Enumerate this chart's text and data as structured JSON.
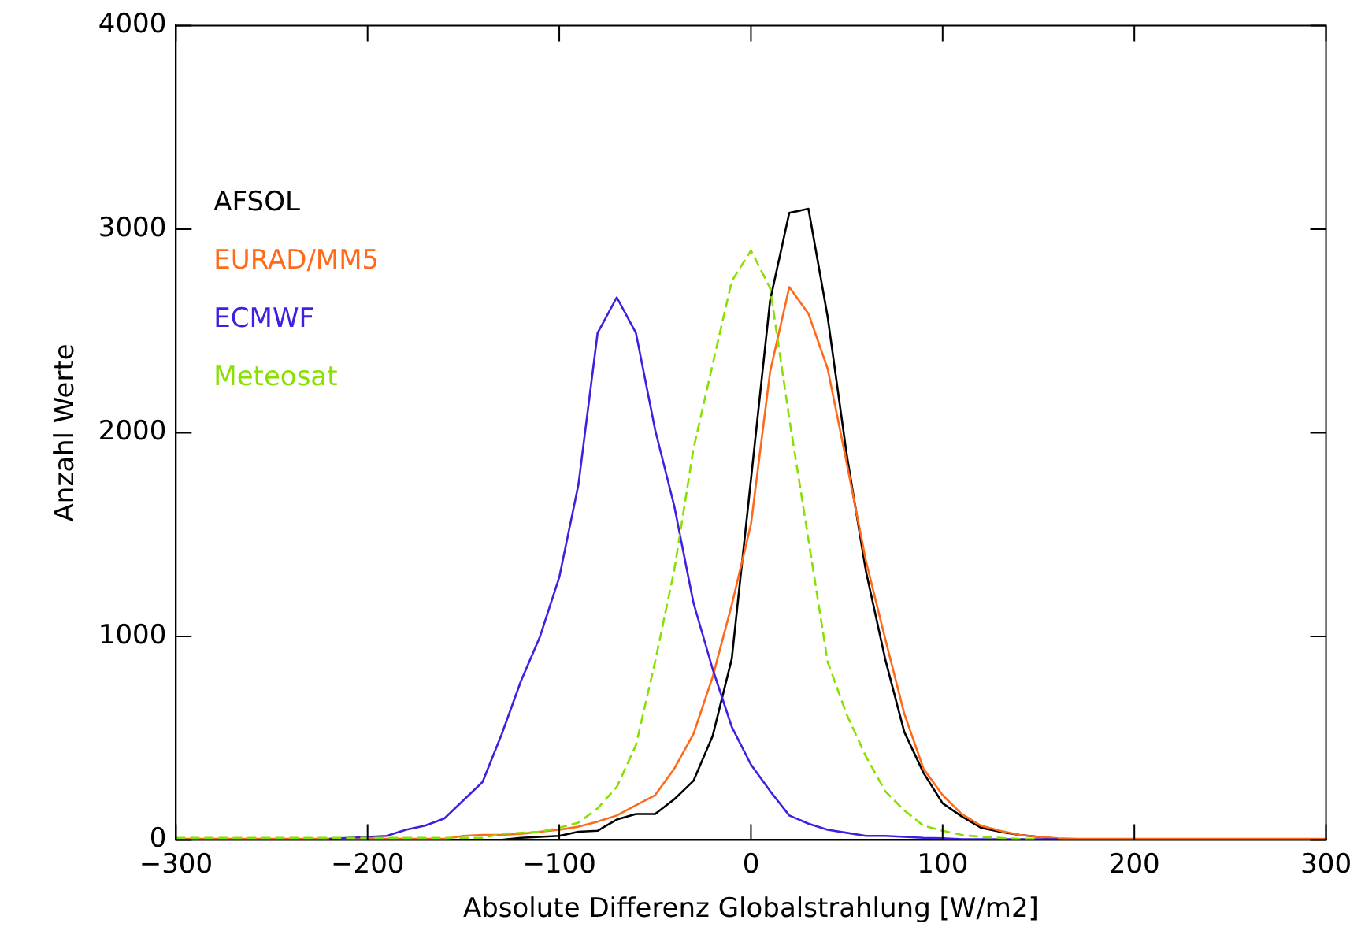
{
  "chart_data": {
    "type": "line",
    "xlabel": "Absolute Differenz Globalstrahlung [W/m2]",
    "ylabel": "Anzahl Werte",
    "x": [
      -300,
      -290,
      -280,
      -270,
      -260,
      -250,
      -240,
      -230,
      -220,
      -210,
      -200,
      -190,
      -180,
      -170,
      -160,
      -150,
      -140,
      -130,
      -120,
      -110,
      -100,
      -90,
      -80,
      -70,
      -60,
      -50,
      -40,
      -30,
      -20,
      -10,
      0,
      10,
      20,
      30,
      40,
      50,
      60,
      70,
      80,
      90,
      100,
      110,
      120,
      130,
      140,
      150,
      160,
      170,
      180,
      190,
      200,
      210,
      220,
      230,
      240,
      250,
      260,
      270,
      280,
      290,
      300
    ],
    "series": [
      {
        "name": "AFSOL",
        "color": "#000000",
        "values": [
          0,
          0,
          0,
          0,
          0,
          0,
          0,
          0,
          0,
          0,
          0,
          0,
          0,
          0,
          0,
          0,
          0,
          0,
          10,
          15,
          20,
          40,
          45,
          100,
          127,
          127,
          200,
          290,
          510,
          890,
          1770,
          2650,
          3080,
          3100,
          2570,
          1890,
          1320,
          890,
          530,
          330,
          180,
          115,
          60,
          40,
          25,
          15,
          5,
          0,
          0,
          0,
          0,
          0,
          0,
          0,
          0,
          0,
          0,
          0,
          0,
          0,
          0
        ]
      },
      {
        "name": "EURAD/MM5",
        "color": "#ff6a1a",
        "values": [
          5,
          5,
          5,
          5,
          5,
          5,
          5,
          5,
          5,
          5,
          5,
          5,
          5,
          5,
          5,
          20,
          25,
          25,
          30,
          40,
          50,
          65,
          90,
          120,
          170,
          220,
          350,
          520,
          800,
          1155,
          1550,
          2300,
          2715,
          2585,
          2315,
          1850,
          1370,
          990,
          620,
          350,
          220,
          127,
          70,
          45,
          25,
          15,
          8,
          5,
          5,
          5,
          5,
          5,
          5,
          5,
          5,
          5,
          5,
          5,
          5,
          5,
          5
        ]
      },
      {
        "name": "ECMWF",
        "color": "#4020e0",
        "values": [
          null,
          null,
          null,
          null,
          null,
          null,
          null,
          null,
          5,
          10,
          15,
          20,
          50,
          70,
          105,
          195,
          285,
          520,
          780,
          1000,
          1290,
          1745,
          2490,
          2665,
          2490,
          2015,
          1640,
          1165,
          840,
          555,
          370,
          240,
          120,
          80,
          50,
          35,
          20,
          20,
          15,
          10,
          8,
          3,
          3,
          3,
          3,
          3,
          3,
          null,
          null,
          null,
          null,
          null,
          null,
          null,
          null,
          null,
          null,
          null,
          null,
          null,
          null
        ]
      },
      {
        "name": "Meteosat",
        "color": "#88e000",
        "line_style": "dashed",
        "values": [
          10,
          10,
          10,
          10,
          10,
          10,
          10,
          10,
          10,
          10,
          10,
          10,
          10,
          10,
          10,
          10,
          10,
          30,
          35,
          40,
          60,
          85,
          155,
          260,
          465,
          875,
          1325,
          1920,
          2335,
          2745,
          2895,
          2710,
          2070,
          1475,
          875,
          615,
          410,
          240,
          145,
          70,
          45,
          25,
          15,
          10,
          5,
          5,
          null,
          null,
          null,
          null,
          null,
          null,
          null,
          null,
          null,
          null,
          null,
          null,
          null,
          null,
          null
        ]
      }
    ],
    "xlim": [
      -300,
      300
    ],
    "xticks": [
      -300,
      -200,
      -100,
      0,
      100,
      200,
      300
    ],
    "ylim": [
      0,
      4000
    ],
    "yticks": [
      0,
      1000,
      2000,
      3000,
      4000
    ],
    "grid": false,
    "legend": "top left",
    "marker": "none",
    "line_style": "solid"
  }
}
